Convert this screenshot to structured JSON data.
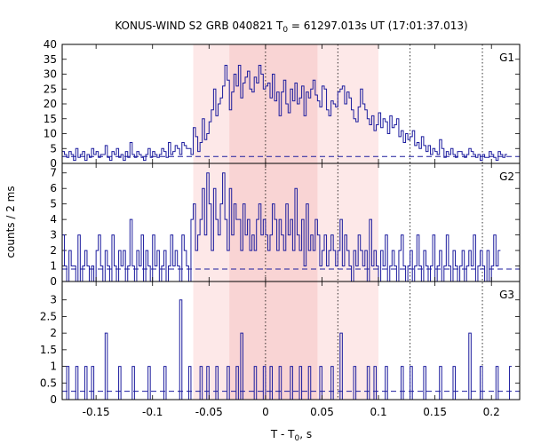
{
  "chart_data": {
    "type": "line",
    "title_main": "KONUS-WIND S2 GRB 040821 T",
    "title_sub": "0",
    "title_rest": " = 61297.013s UT (17:01:37.013)",
    "xlabel_main": "T - T",
    "xlabel_sub": "0",
    "xlabel_rest": ", s",
    "ylabel": "counts / 2 ms",
    "xlim": [
      -0.18,
      0.225
    ],
    "xticks": [
      -0.15,
      -0.1,
      -0.05,
      0,
      0.05,
      0.1,
      0.15,
      0.2
    ],
    "xtick_labels": [
      "-0.15",
      "-0.1",
      "-0.05",
      "0",
      "0.05",
      "0.1",
      "0.15",
      "0.2"
    ],
    "bin_width": 0.002,
    "shaded_regions": [
      {
        "x": [
          -0.064,
          0.1
        ],
        "color": "#fde8e8"
      },
      {
        "x": [
          -0.032,
          0.046
        ],
        "color": "#f9d4d4"
      }
    ],
    "vertical_lines": [
      0,
      0.064,
      0.128,
      0.192
    ],
    "line_color": "#1c1c9e",
    "panels": [
      {
        "name": "G1",
        "ylim": [
          0,
          40
        ],
        "yticks": [
          0,
          5,
          10,
          15,
          20,
          25,
          30,
          35,
          40
        ],
        "background": 2.3,
        "counts": [
          4,
          3,
          2,
          4,
          3,
          1,
          5,
          2,
          3,
          4,
          1,
          3,
          2,
          5,
          3,
          4,
          2,
          3,
          3,
          6,
          2,
          1,
          4,
          3,
          5,
          2,
          3,
          1,
          4,
          2,
          7,
          3,
          2,
          4,
          3,
          2,
          1,
          3,
          5,
          2,
          4,
          3,
          2,
          3,
          5,
          4,
          2,
          7,
          3,
          4,
          6,
          5,
          3,
          7,
          6,
          5,
          5,
          3,
          12,
          9,
          4,
          7,
          15,
          8,
          10,
          14,
          18,
          25,
          16,
          20,
          22,
          26,
          33,
          28,
          18,
          24,
          30,
          26,
          33,
          22,
          27,
          29,
          31,
          25,
          24,
          29,
          27,
          33,
          30,
          25,
          26,
          27,
          22,
          30,
          21,
          24,
          16,
          24,
          28,
          20,
          17,
          25,
          21,
          27,
          20,
          22,
          26,
          16,
          24,
          22,
          25,
          28,
          23,
          21,
          19,
          26,
          25,
          18,
          16,
          21,
          20,
          19,
          24,
          25,
          26,
          20,
          24,
          22,
          18,
          15,
          14,
          19,
          25,
          20,
          18,
          15,
          13,
          16,
          11,
          13,
          17,
          12,
          15,
          14,
          10,
          16,
          12,
          13,
          15,
          9,
          11,
          7,
          10,
          8,
          9,
          11,
          6,
          7,
          5,
          9,
          6,
          4,
          6,
          3,
          5,
          4,
          3,
          8,
          5,
          2,
          4,
          3,
          5,
          3,
          2,
          4,
          4,
          3,
          2,
          3,
          5,
          4,
          3,
          2,
          3,
          1,
          3,
          2,
          2,
          4,
          3,
          2,
          1,
          4,
          3,
          2,
          3
        ]
      },
      {
        "name": "G2",
        "ylim": [
          0,
          7.5
        ],
        "yticks": [
          0,
          1,
          2,
          3,
          4,
          5,
          6,
          7
        ],
        "background": 0.8,
        "counts": [
          3,
          1,
          0,
          2,
          1,
          1,
          0,
          3,
          0,
          1,
          2,
          1,
          0,
          1,
          0,
          2,
          3,
          1,
          0,
          2,
          1,
          0,
          3,
          1,
          0,
          2,
          1,
          2,
          0,
          1,
          4,
          1,
          0,
          2,
          1,
          3,
          0,
          2,
          1,
          0,
          3,
          1,
          2,
          0,
          1,
          2,
          0,
          1,
          3,
          1,
          2,
          1,
          0,
          3,
          2,
          1,
          0,
          4,
          5,
          2,
          3,
          4,
          6,
          3,
          7,
          5,
          2,
          6,
          4,
          3,
          5,
          7,
          4,
          2,
          6,
          3,
          5,
          4,
          4,
          2,
          5,
          3,
          4,
          2,
          3,
          2,
          4,
          5,
          3,
          4,
          3,
          2,
          3,
          5,
          4,
          2,
          4,
          3,
          2,
          5,
          3,
          4,
          2,
          6,
          3,
          2,
          4,
          1,
          5,
          2,
          3,
          2,
          4,
          3,
          1,
          2,
          3,
          1,
          2,
          3,
          2,
          1,
          2,
          4,
          1,
          3,
          2,
          1,
          0,
          2,
          1,
          3,
          2,
          1,
          2,
          0,
          4,
          1,
          2,
          1,
          0,
          2,
          1,
          3,
          0,
          1,
          2,
          1,
          0,
          2,
          3,
          1,
          0,
          1,
          2,
          0,
          1,
          3,
          1,
          0,
          2,
          1,
          0,
          1,
          3,
          0,
          1,
          2,
          0,
          1,
          3,
          1,
          0,
          2,
          1,
          0,
          1,
          2,
          0,
          1,
          2,
          1,
          3,
          0,
          1,
          2,
          1,
          0,
          2,
          0,
          1,
          3,
          1,
          2
        ]
      },
      {
        "name": "G3",
        "ylim": [
          0,
          3.5
        ],
        "yticks": [
          0,
          0.5,
          1,
          1.5,
          2,
          2.5,
          3
        ],
        "ytick_labels": [
          "0",
          "0.5",
          "1",
          "1.5",
          "2",
          "2.5",
          "3"
        ],
        "background": 0.25,
        "counts": [
          0,
          0,
          1,
          0,
          0,
          0,
          1,
          0,
          0,
          0,
          1,
          0,
          0,
          1,
          0,
          0,
          0,
          0,
          0,
          2,
          0,
          0,
          0,
          0,
          0,
          1,
          0,
          0,
          0,
          0,
          0,
          1,
          0,
          0,
          0,
          0,
          0,
          0,
          1,
          0,
          0,
          0,
          0,
          0,
          0,
          1,
          0,
          0,
          0,
          0,
          0,
          0,
          3,
          0,
          0,
          0,
          1,
          0,
          0,
          0,
          0,
          1,
          0,
          0,
          1,
          0,
          0,
          0,
          1,
          0,
          0,
          0,
          0,
          1,
          0,
          0,
          0,
          1,
          0,
          2,
          0,
          0,
          0,
          0,
          0,
          1,
          0,
          0,
          0,
          1,
          0,
          0,
          1,
          0,
          0,
          0,
          1,
          0,
          0,
          0,
          0,
          1,
          0,
          0,
          0,
          1,
          0,
          0,
          0,
          1,
          0,
          0,
          0,
          0,
          1,
          0,
          0,
          0,
          0,
          1,
          0,
          0,
          0,
          2,
          0,
          0,
          0,
          0,
          0,
          1,
          0,
          0,
          0,
          0,
          0,
          1,
          0,
          0,
          1,
          0,
          0,
          0,
          0,
          1,
          0,
          0,
          0,
          0,
          0,
          0,
          1,
          0,
          0,
          0,
          1,
          0,
          0,
          0,
          0,
          0,
          1,
          0,
          0,
          0,
          0,
          0,
          0,
          1,
          0,
          0,
          0,
          0,
          0,
          1,
          0,
          0,
          0,
          0,
          0,
          0,
          2,
          0,
          0,
          0,
          0,
          1,
          0,
          0,
          0,
          0,
          0,
          0,
          1,
          0,
          0,
          0,
          0,
          0,
          1
        ]
      }
    ]
  }
}
